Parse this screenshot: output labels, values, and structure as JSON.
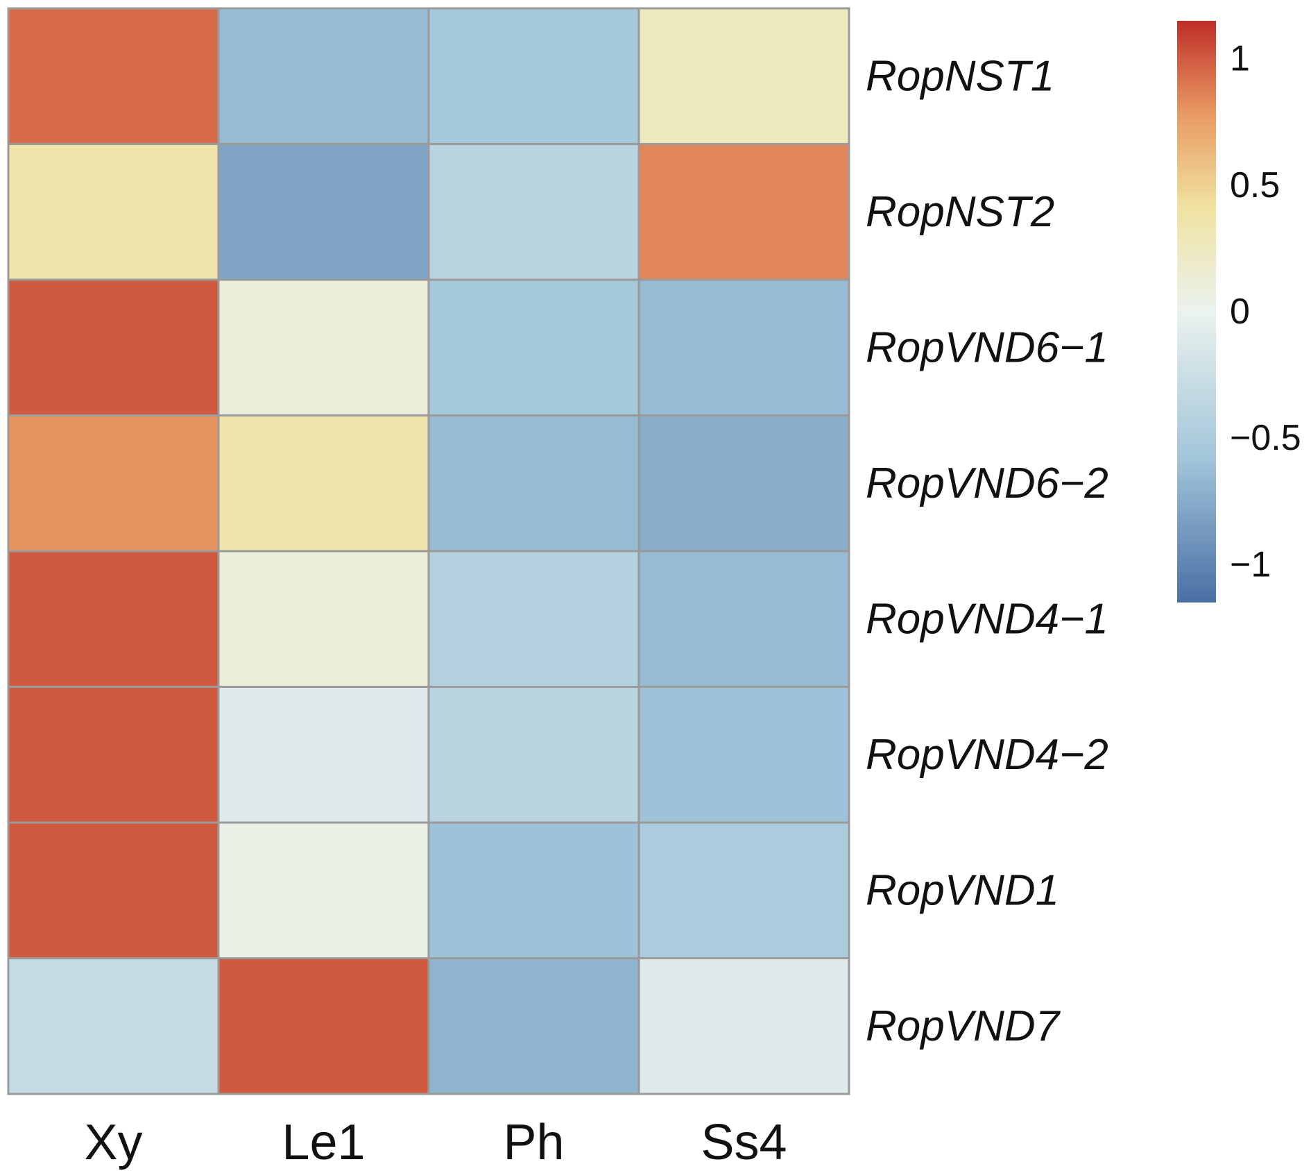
{
  "chart_data": {
    "type": "heatmap",
    "title": "",
    "columns": [
      "Xy",
      "Le1",
      "Ph",
      "Ss4"
    ],
    "rows": [
      "RopNST1",
      "RopNST2",
      "RopVND6−1",
      "RopVND6−2",
      "RopVND4−1",
      "RopVND4−2",
      "RopVND1",
      "RopVND7"
    ],
    "values": [
      [
        0.95,
        -0.65,
        -0.55,
        0.25
      ],
      [
        0.35,
        -0.8,
        -0.4,
        0.85
      ],
      [
        1.0,
        0.1,
        -0.55,
        -0.65
      ],
      [
        0.8,
        0.35,
        -0.65,
        -0.75
      ],
      [
        1.0,
        0.1,
        -0.45,
        -0.65
      ],
      [
        1.0,
        -0.1,
        -0.4,
        -0.6
      ],
      [
        1.0,
        0.05,
        -0.6,
        -0.5
      ],
      [
        -0.3,
        1.0,
        -0.7,
        -0.1
      ]
    ],
    "colorbar": {
      "range": [
        -1.15,
        1.15
      ],
      "ticks": [
        1,
        0.5,
        0,
        -0.5,
        -1
      ],
      "tick_labels": [
        "1",
        "0.5",
        "0",
        "−0.5",
        "−1"
      ],
      "colors": [
        "#4a6fa5",
        "#a3c6da",
        "#eaf2ee",
        "#f0e2a0",
        "#e99a63",
        "#bf2e28"
      ]
    },
    "grid_color": "#9a9a9a"
  }
}
